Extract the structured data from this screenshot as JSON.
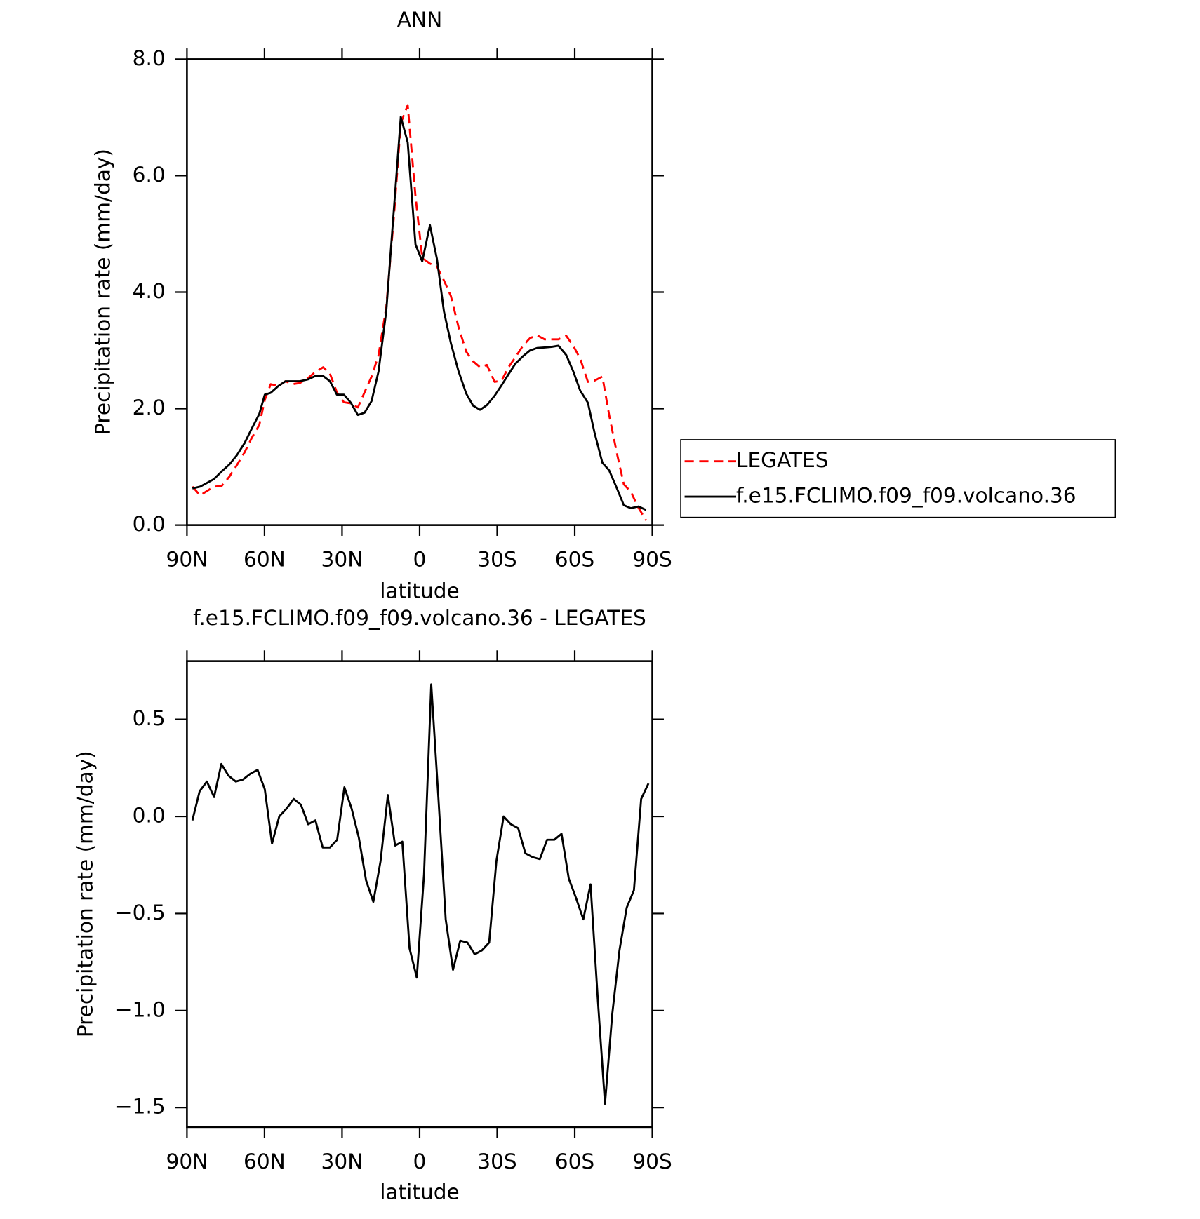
{
  "chart_data": [
    {
      "type": "line",
      "title": "ANN",
      "xlabel": "latitude",
      "ylabel": "Precipitation rate (mm/day)",
      "xlim": [
        90,
        -90
      ],
      "xticks": [
        {
          "value": 90,
          "label": "90N"
        },
        {
          "value": 60,
          "label": "60N"
        },
        {
          "value": 30,
          "label": "30N"
        },
        0,
        {
          "value": -30,
          "label": "30S"
        },
        {
          "value": -60,
          "label": "60S"
        },
        {
          "value": -90,
          "label": "90S"
        }
      ],
      "ylim": [
        0,
        8
      ],
      "yticks": [
        {
          "value": 0,
          "label": "0.0"
        },
        {
          "value": 2,
          "label": "2.0"
        },
        {
          "value": 4,
          "label": "4.0"
        },
        {
          "value": 6,
          "label": "6.0"
        },
        {
          "value": 8,
          "label": "8.0"
        }
      ],
      "legend": "right",
      "x": [
        87.9,
        84.9,
        79.6,
        76.6,
        73.6,
        70.7,
        67.7,
        65.0,
        62.0,
        59.9,
        57.6,
        54.6,
        51.9,
        49.2,
        46.3,
        43.3,
        40.3,
        37.3,
        34.7,
        32.0,
        29.3,
        26.6,
        23.9,
        21.3,
        18.6,
        15.9,
        12.9,
        9.9,
        7.3,
        4.6,
        1.6,
        -1.0,
        -4.0,
        -6.7,
        -9.4,
        -12.1,
        -15.0,
        -18.0,
        -20.7,
        -23.4,
        -26.0,
        -29.0,
        -31.7,
        -34.4,
        -37.0,
        -40.0,
        -42.7,
        -45.4,
        -48.3,
        -51.0,
        -53.7,
        -56.7,
        -59.4,
        -62.1,
        -65.1,
        -67.7,
        -70.7,
        -73.3,
        -76.3,
        -79.0,
        -81.7,
        -84.6,
        -87.6
      ],
      "series": [
        {
          "name": "LEGATES",
          "color": "#ff0000",
          "line_style": "dashed",
          "values": [
            0.66,
            0.51,
            0.66,
            0.67,
            0.83,
            1.03,
            1.25,
            1.49,
            1.72,
            2.15,
            2.42,
            2.39,
            2.47,
            2.42,
            2.44,
            2.52,
            2.63,
            2.71,
            2.6,
            2.28,
            2.11,
            2.09,
            2.02,
            2.28,
            2.55,
            2.92,
            3.74,
            5.32,
            6.9,
            7.21,
            5.65,
            4.59,
            4.49,
            4.44,
            4.2,
            3.93,
            3.41,
            2.98,
            2.81,
            2.71,
            2.75,
            2.46,
            2.48,
            2.71,
            2.88,
            3.08,
            3.21,
            3.26,
            3.19,
            3.19,
            3.19,
            3.25,
            3.08,
            2.86,
            2.46,
            2.48,
            2.55,
            1.89,
            1.23,
            0.7,
            0.57,
            0.3,
            0.08
          ]
        },
        {
          "name": "f.e15.FCLIMO.f09_f09.volcano.36",
          "color": "#000000",
          "line_style": "solid",
          "values": [
            0.63,
            0.66,
            0.79,
            0.92,
            1.04,
            1.2,
            1.41,
            1.65,
            1.91,
            2.24,
            2.27,
            2.39,
            2.47,
            2.47,
            2.47,
            2.5,
            2.56,
            2.56,
            2.47,
            2.24,
            2.24,
            2.1,
            1.89,
            1.93,
            2.13,
            2.64,
            3.67,
            5.45,
            7.01,
            6.57,
            4.82,
            4.53,
            5.15,
            4.57,
            3.67,
            3.12,
            2.65,
            2.26,
            2.05,
            1.98,
            2.06,
            2.22,
            2.4,
            2.59,
            2.77,
            2.9,
            3.0,
            3.04,
            3.05,
            3.06,
            3.08,
            2.92,
            2.64,
            2.31,
            2.1,
            1.58,
            1.07,
            0.94,
            0.63,
            0.34,
            0.29,
            0.32,
            0.26
          ]
        }
      ]
    },
    {
      "type": "line",
      "title": "f.e15.FCLIMO.f09_f09.volcano.36 - LEGATES",
      "xlabel": "latitude",
      "ylabel": "Precipitation rate (mm/day)",
      "xlim": [
        90,
        -90
      ],
      "xticks": [
        {
          "value": 90,
          "label": "90N"
        },
        {
          "value": 60,
          "label": "60N"
        },
        {
          "value": 30,
          "label": "30N"
        },
        0,
        {
          "value": -30,
          "label": "30S"
        },
        {
          "value": -60,
          "label": "60S"
        },
        {
          "value": -90,
          "label": "90S"
        }
      ],
      "ylim": [
        -1.6,
        0.8
      ],
      "yticks": [
        {
          "value": -1.5,
          "label": "−1.5"
        },
        {
          "value": -1.0,
          "label": "−1.0"
        },
        {
          "value": -0.5,
          "label": "−0.5"
        },
        {
          "value": 0,
          "label": "0.0"
        },
        0.5
      ],
      "color": "#000000",
      "x": [
        87.9,
        85.1,
        82.3,
        79.5,
        76.7,
        73.9,
        71.1,
        68.3,
        65.5,
        62.7,
        59.9,
        57.1,
        54.3,
        51.5,
        48.7,
        45.9,
        43.1,
        40.3,
        37.5,
        34.7,
        31.9,
        29.1,
        26.3,
        23.5,
        20.7,
        17.9,
        15.1,
        12.3,
        9.5,
        6.7,
        3.9,
        1.1,
        -1.7,
        -4.5,
        -7.3,
        -10.1,
        -12.9,
        -15.7,
        -18.5,
        -21.3,
        -24.1,
        -26.9,
        -29.7,
        -32.5,
        -35.3,
        -38.1,
        -40.9,
        -43.7,
        -46.5,
        -49.3,
        -52.1,
        -54.9,
        -57.7,
        -60.5,
        -63.3,
        -66.1,
        -68.9,
        -71.7,
        -74.5,
        -77.3,
        -80.1,
        -82.9,
        -85.7,
        -88.5
      ],
      "values": [
        -0.02,
        0.13,
        0.18,
        0.1,
        0.27,
        0.21,
        0.18,
        0.19,
        0.22,
        0.24,
        0.14,
        -0.14,
        0.0,
        0.04,
        0.09,
        0.06,
        -0.04,
        -0.02,
        -0.16,
        -0.16,
        -0.12,
        0.15,
        0.04,
        -0.11,
        -0.33,
        -0.44,
        -0.23,
        0.11,
        -0.15,
        -0.13,
        -0.68,
        -0.83,
        -0.3,
        0.68,
        0.09,
        -0.53,
        -0.79,
        -0.64,
        -0.65,
        -0.71,
        -0.69,
        -0.65,
        -0.23,
        0.0,
        -0.04,
        -0.06,
        -0.19,
        -0.21,
        -0.22,
        -0.12,
        -0.12,
        -0.09,
        -0.32,
        -0.42,
        -0.53,
        -0.35,
        -0.94,
        -1.48,
        -1.02,
        -0.69,
        -0.47,
        -0.38,
        0.09,
        0.17
      ]
    }
  ]
}
